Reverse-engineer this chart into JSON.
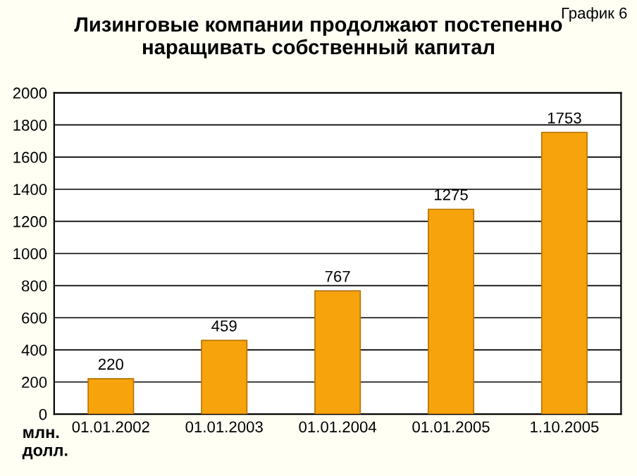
{
  "chart_data": {
    "type": "bar",
    "title": "Лизинговые компании продолжают постепенно\nнаращивать собственный капитал",
    "ylabel": "млн.\nдолл.",
    "annotations": [
      "График 6"
    ],
    "categories": [
      "01.01.2002",
      "01.01.2003",
      "01.01.2004",
      "01.01.2005",
      "1.10.2005"
    ],
    "values": [
      220,
      459,
      767,
      1275,
      1753
    ],
    "color": "#f7a30c",
    "ylim": [
      0,
      2000
    ],
    "yticks": [
      0,
      200,
      400,
      600,
      800,
      1000,
      1200,
      1400,
      1600,
      1800,
      2000
    ],
    "grid": "y",
    "data_labels": true
  }
}
